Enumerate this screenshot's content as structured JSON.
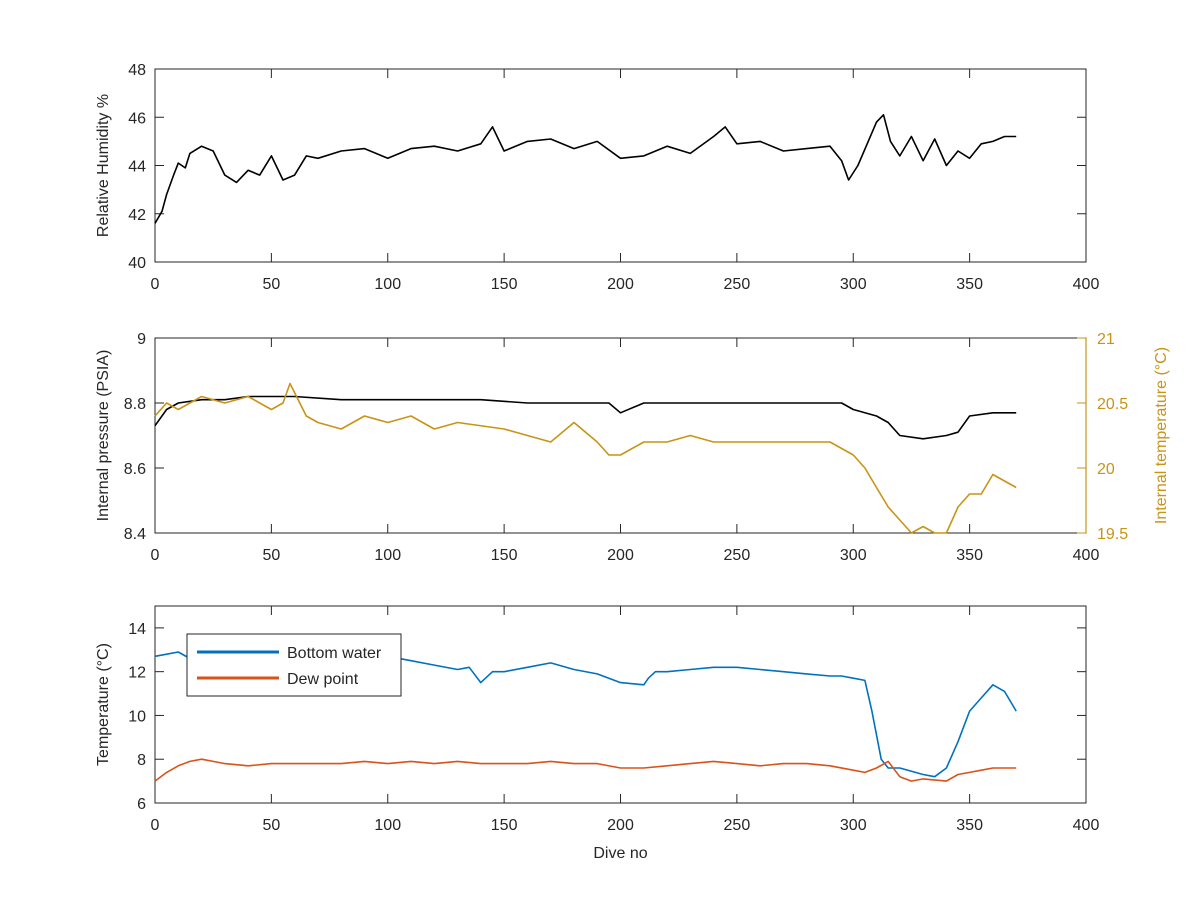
{
  "figure": {
    "background": "#ffffff"
  },
  "chart_data": [
    {
      "type": "line",
      "title": "",
      "xlabel": "",
      "ylabel": "Relative Humidity %",
      "xlim": [
        0,
        400
      ],
      "ylim": [
        40,
        48
      ],
      "x_ticks": [
        0,
        50,
        100,
        150,
        200,
        250,
        300,
        350,
        400
      ],
      "y_ticks": [
        40,
        42,
        44,
        46,
        48
      ],
      "grid": false,
      "series": [
        {
          "color": "#000000",
          "x": [
            0,
            3,
            5,
            8,
            10,
            13,
            15,
            20,
            25,
            30,
            35,
            40,
            45,
            50,
            55,
            60,
            65,
            70,
            80,
            90,
            100,
            110,
            120,
            130,
            140,
            145,
            150,
            160,
            170,
            180,
            190,
            200,
            210,
            220,
            230,
            240,
            245,
            250,
            260,
            270,
            280,
            290,
            295,
            298,
            302,
            306,
            310,
            313,
            316,
            320,
            325,
            330,
            335,
            340,
            345,
            350,
            355,
            360,
            365,
            370
          ],
          "y": [
            41.6,
            42.1,
            42.8,
            43.6,
            44.1,
            43.9,
            44.5,
            44.8,
            44.6,
            43.6,
            43.3,
            43.8,
            43.6,
            44.4,
            43.4,
            43.6,
            44.4,
            44.3,
            44.6,
            44.7,
            44.3,
            44.7,
            44.8,
            44.6,
            44.9,
            45.6,
            44.6,
            45.0,
            45.1,
            44.7,
            45.0,
            44.3,
            44.4,
            44.8,
            44.5,
            45.2,
            45.6,
            44.9,
            45.0,
            44.6,
            44.7,
            44.8,
            44.2,
            43.4,
            44.0,
            44.9,
            45.8,
            46.1,
            45.0,
            44.4,
            45.2,
            44.2,
            45.1,
            44.0,
            44.6,
            44.3,
            44.9,
            45.0,
            45.2,
            45.2
          ]
        }
      ]
    },
    {
      "type": "line",
      "title": "",
      "xlabel": "",
      "ylabel": "Internal pressure (PSIA)",
      "y2label": "Internal temperature (°C)",
      "xlim": [
        0,
        400
      ],
      "ylim": [
        8.4,
        9
      ],
      "y2lim": [
        19.5,
        21
      ],
      "x_ticks": [
        0,
        50,
        100,
        150,
        200,
        250,
        300,
        350,
        400
      ],
      "y_ticks": [
        8.4,
        8.6,
        8.8,
        9
      ],
      "y_tick_labels": [
        "8.4",
        "8.6",
        "8.8",
        "9"
      ],
      "y2_ticks": [
        19.5,
        20,
        20.5,
        21
      ],
      "y2_tick_labels": [
        "19.5",
        "20",
        "20.5",
        "21"
      ],
      "grid": false,
      "series": [
        {
          "axis": "left",
          "color": "#000000",
          "x": [
            0,
            5,
            10,
            20,
            30,
            40,
            60,
            80,
            100,
            120,
            140,
            160,
            180,
            195,
            200,
            210,
            240,
            270,
            295,
            300,
            310,
            315,
            320,
            330,
            340,
            345,
            350,
            360,
            370
          ],
          "y": [
            8.73,
            8.78,
            8.8,
            8.81,
            8.81,
            8.82,
            8.82,
            8.81,
            8.81,
            8.81,
            8.81,
            8.8,
            8.8,
            8.8,
            8.77,
            8.8,
            8.8,
            8.8,
            8.8,
            8.78,
            8.76,
            8.74,
            8.7,
            8.69,
            8.7,
            8.71,
            8.76,
            8.77,
            8.77
          ]
        },
        {
          "axis": "right",
          "color": "#C89416",
          "x": [
            0,
            5,
            10,
            20,
            30,
            40,
            50,
            55,
            58,
            65,
            70,
            80,
            90,
            100,
            110,
            120,
            130,
            150,
            170,
            180,
            190,
            195,
            200,
            210,
            220,
            230,
            240,
            250,
            260,
            270,
            280,
            290,
            300,
            305,
            310,
            315,
            320,
            325,
            330,
            335,
            340,
            345,
            350,
            355,
            360,
            365,
            370
          ],
          "y": [
            20.4,
            20.5,
            20.45,
            20.55,
            20.5,
            20.55,
            20.45,
            20.5,
            20.65,
            20.4,
            20.35,
            20.3,
            20.4,
            20.35,
            20.4,
            20.3,
            20.35,
            20.3,
            20.2,
            20.35,
            20.2,
            20.1,
            20.1,
            20.2,
            20.2,
            20.25,
            20.2,
            20.2,
            20.2,
            20.2,
            20.2,
            20.2,
            20.1,
            20.0,
            19.85,
            19.7,
            19.6,
            19.5,
            19.55,
            19.5,
            19.5,
            19.7,
            19.8,
            19.8,
            19.95,
            19.9,
            19.85
          ]
        }
      ]
    },
    {
      "type": "line",
      "title": "",
      "xlabel": "Dive no",
      "ylabel": "Temperature (°C)",
      "xlim": [
        0,
        400
      ],
      "ylim": [
        6,
        15
      ],
      "x_ticks": [
        0,
        50,
        100,
        150,
        200,
        250,
        300,
        350,
        400
      ],
      "y_ticks": [
        6,
        8,
        10,
        12,
        14
      ],
      "grid": false,
      "legend": "top-left",
      "series": [
        {
          "name": "Bottom water",
          "color": "#0072BD",
          "x": [
            0,
            5,
            10,
            15,
            20,
            30,
            50,
            70,
            90,
            100,
            110,
            120,
            130,
            135,
            140,
            145,
            150,
            160,
            170,
            180,
            190,
            200,
            210,
            212,
            215,
            220,
            230,
            240,
            250,
            260,
            270,
            280,
            290,
            295,
            300,
            305,
            308,
            312,
            315,
            320,
            330,
            335,
            340,
            345,
            350,
            355,
            360,
            365,
            370
          ],
          "y": [
            12.7,
            12.8,
            12.9,
            12.6,
            12.5,
            12.7,
            12.8,
            12.9,
            12.8,
            12.7,
            12.5,
            12.3,
            12.1,
            12.2,
            11.5,
            12.0,
            12.0,
            12.2,
            12.4,
            12.1,
            11.9,
            11.5,
            11.4,
            11.7,
            12.0,
            12.0,
            12.1,
            12.2,
            12.2,
            12.1,
            12.0,
            11.9,
            11.8,
            11.8,
            11.7,
            11.6,
            10.2,
            8.0,
            7.6,
            7.6,
            7.3,
            7.2,
            7.6,
            8.8,
            10.2,
            10.8,
            11.4,
            11.1,
            10.2
          ]
        },
        {
          "name": "Dew point",
          "color": "#D95319",
          "x": [
            0,
            5,
            10,
            15,
            20,
            25,
            30,
            40,
            50,
            60,
            70,
            80,
            90,
            100,
            110,
            120,
            130,
            140,
            150,
            160,
            170,
            180,
            190,
            200,
            210,
            220,
            230,
            240,
            250,
            260,
            270,
            280,
            290,
            300,
            305,
            310,
            315,
            320,
            325,
            330,
            340,
            345,
            350,
            355,
            360,
            365,
            370
          ],
          "y": [
            7.0,
            7.4,
            7.7,
            7.9,
            8.0,
            7.9,
            7.8,
            7.7,
            7.8,
            7.8,
            7.8,
            7.8,
            7.9,
            7.8,
            7.9,
            7.8,
            7.9,
            7.8,
            7.8,
            7.8,
            7.9,
            7.8,
            7.8,
            7.6,
            7.6,
            7.7,
            7.8,
            7.9,
            7.8,
            7.7,
            7.8,
            7.8,
            7.7,
            7.5,
            7.4,
            7.6,
            7.9,
            7.2,
            7.0,
            7.1,
            7.0,
            7.3,
            7.4,
            7.5,
            7.6,
            7.6,
            7.6
          ]
        }
      ]
    }
  ]
}
